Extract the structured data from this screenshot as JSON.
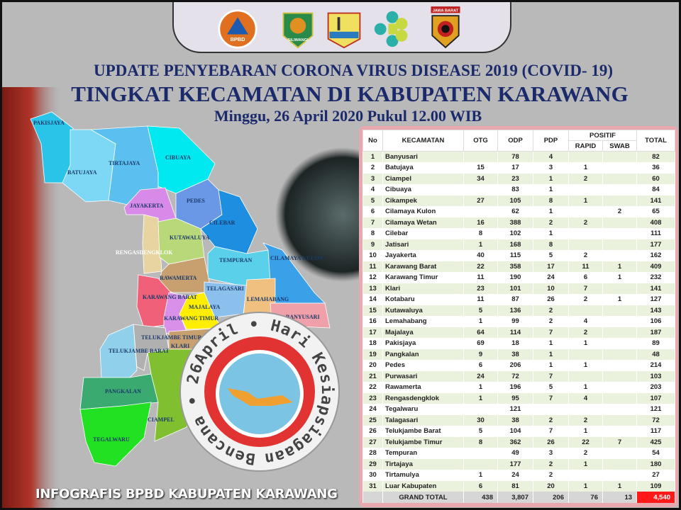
{
  "header": {
    "line1": "UPDATE PENYEBARAN CORONA VIRUS DISEASE 2019 (COVID- 19)",
    "line2": "TINGKAT KECAMATAN DI KABUPATEN KARAWANG",
    "line3": "Minggu, 26 April 2020 Pukul 12.00 WIB"
  },
  "logos": {
    "bpbd": "BPBD",
    "siliwangi": "SILIWANGI",
    "polda": "JAWA BARAT"
  },
  "map": {
    "labels": [
      "PAKISJAYA",
      "BATUJAYA",
      "TIRTAJAYA",
      "CIBUAYA",
      "JAYAKERTA",
      "PEDES",
      "CILEBAR",
      "KUTAWALUYA",
      "RENGASDENGKLOK",
      "TEMPURAN",
      "CILAMAYA KULON",
      "RAWAMERTA",
      "TELAGASARI",
      "LEMAHABANG",
      "BANYUSARI",
      "KARAWANG BARAT",
      "MAJALAYA",
      "KARAWANG TIMUR",
      "TELUKJAMBE TIMUR",
      "TELUKJAMBE BARAT",
      "KLARI",
      "PANGKALAN",
      "CIAMPEL",
      "TEGALWARU"
    ]
  },
  "emblem": {
    "ring_text": "Bencana • 26April • Hari Kesiapsiagaan"
  },
  "table": {
    "headers": {
      "no": "No",
      "kecamatan": "KECAMATAN",
      "otg": "OTG",
      "odp": "ODP",
      "pdp": "PDP",
      "positif": "POSITIF",
      "rapid": "RAPID",
      "swab": "SWAB",
      "total": "TOTAL"
    },
    "rows": [
      [
        "1",
        "Banyusari",
        "",
        "78",
        "4",
        "",
        "",
        "82"
      ],
      [
        "2",
        "Batujaya",
        "15",
        "17",
        "3",
        "1",
        "",
        "36"
      ],
      [
        "3",
        "Ciampel",
        "34",
        "23",
        "1",
        "2",
        "",
        "60"
      ],
      [
        "4",
        "Cibuaya",
        "",
        "83",
        "1",
        "",
        "",
        "84"
      ],
      [
        "5",
        "Cikampek",
        "27",
        "105",
        "8",
        "1",
        "",
        "141"
      ],
      [
        "6",
        "Cilamaya Kulon",
        "",
        "62",
        "1",
        "",
        "2",
        "65"
      ],
      [
        "7",
        "Cilamaya Wetan",
        "16",
        "388",
        "2",
        "2",
        "",
        "408"
      ],
      [
        "8",
        "Cilebar",
        "8",
        "102",
        "1",
        "",
        "",
        "111"
      ],
      [
        "9",
        "Jatisari",
        "1",
        "168",
        "8",
        "",
        "",
        "177"
      ],
      [
        "10",
        "Jayakerta",
        "40",
        "115",
        "5",
        "2",
        "",
        "162"
      ],
      [
        "11",
        "Karawang Barat",
        "22",
        "358",
        "17",
        "11",
        "1",
        "409"
      ],
      [
        "12",
        "Karawang Timur",
        "11",
        "190",
        "24",
        "6",
        "1",
        "232"
      ],
      [
        "13",
        "Klari",
        "23",
        "101",
        "10",
        "7",
        "",
        "141"
      ],
      [
        "14",
        "Kotabaru",
        "11",
        "87",
        "26",
        "2",
        "1",
        "127"
      ],
      [
        "15",
        "Kutawaluya",
        "5",
        "136",
        "2",
        "",
        "",
        "143"
      ],
      [
        "16",
        "Lemahabang",
        "1",
        "99",
        "2",
        "4",
        "",
        "106"
      ],
      [
        "17",
        "Majalaya",
        "64",
        "114",
        "7",
        "2",
        "",
        "187"
      ],
      [
        "18",
        "Pakisjaya",
        "69",
        "18",
        "1",
        "1",
        "",
        "89"
      ],
      [
        "19",
        "Pangkalan",
        "9",
        "38",
        "1",
        "",
        "",
        "48"
      ],
      [
        "20",
        "Pedes",
        "6",
        "206",
        "1",
        "1",
        "",
        "214"
      ],
      [
        "21",
        "Purwasari",
        "24",
        "72",
        "7",
        "",
        "",
        "103"
      ],
      [
        "22",
        "Rawamerta",
        "1",
        "196",
        "5",
        "1",
        "",
        "203"
      ],
      [
        "23",
        "Rengasdengklok",
        "1",
        "95",
        "7",
        "4",
        "",
        "107"
      ],
      [
        "24",
        "Tegalwaru",
        "",
        "121",
        "",
        "",
        "",
        "121"
      ],
      [
        "25",
        "Talagasari",
        "30",
        "38",
        "2",
        "2",
        "",
        "72"
      ],
      [
        "26",
        "Telukjambe Barat",
        "5",
        "104",
        "7",
        "1",
        "",
        "117"
      ],
      [
        "27",
        "Telukjambe Timur",
        "8",
        "362",
        "26",
        "22",
        "7",
        "425"
      ],
      [
        "28",
        "Tempuran",
        "",
        "49",
        "3",
        "2",
        "",
        "54"
      ],
      [
        "29",
        "Tirtajaya",
        "",
        "177",
        "2",
        "1",
        "",
        "180"
      ],
      [
        "30",
        "Tirtamulya",
        "1",
        "24",
        "2",
        "",
        "",
        "27"
      ],
      [
        "31",
        "Luar Kabupaten",
        "6",
        "81",
        "20",
        "1",
        "1",
        "109"
      ]
    ],
    "grand_total": {
      "label": "GRAND TOTAL",
      "otg": "438",
      "odp": "3,807",
      "pdp": "206",
      "rapid": "76",
      "swab": "13",
      "total": "4,540"
    }
  },
  "footer": "INFOGRAFIS BPBD KABUPATEN KARAWANG",
  "colors": {
    "title": "#1b2a6b",
    "grand_total_highlight": "#ff1a1a",
    "row_alt": "#eaf1dd",
    "frame": "#e8a8ae"
  }
}
